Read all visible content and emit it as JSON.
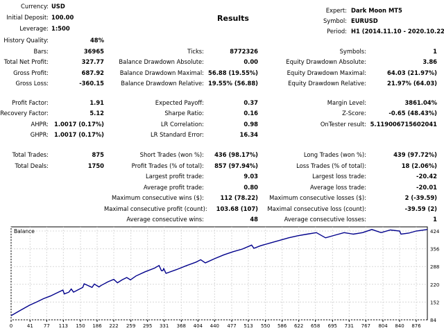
{
  "header": {
    "title": "Results",
    "currency": {
      "label": "Currency:",
      "value": "USD"
    },
    "initial_deposit": {
      "label": "Initial Deposit:",
      "value": "100.00"
    },
    "leverage": {
      "label": "Leverage:",
      "value": "1:500"
    },
    "expert": {
      "label": "Expert:",
      "value": "Dark Moon MT5"
    },
    "symbol": {
      "label": "Symbol:",
      "value": "EURUSD"
    },
    "period": {
      "label": "Period:",
      "value": "H1 (2014.11.10 - 2020.10.22)"
    }
  },
  "stats": {
    "history_quality": {
      "label": "History Quality:",
      "value": "48%"
    },
    "bars": {
      "label": "Bars:",
      "value": "36965"
    },
    "ticks": {
      "label": "Ticks:",
      "value": "8772326"
    },
    "symbols": {
      "label": "Symbols:",
      "value": "1"
    },
    "total_net_profit": {
      "label": "Total Net Profit:",
      "value": "327.77"
    },
    "balance_dd_abs": {
      "label": "Balance Drawdown Absolute:",
      "value": "0.00"
    },
    "equity_dd_abs": {
      "label": "Equity Drawdown Absolute:",
      "value": "3.86"
    },
    "gross_profit": {
      "label": "Gross Profit:",
      "value": "687.92"
    },
    "balance_dd_max": {
      "label": "Balance Drawdown Maximal:",
      "value": "56.88 (19.55%)"
    },
    "equity_dd_max": {
      "label": "Equity Drawdown Maximal:",
      "value": "64.03 (21.97%)"
    },
    "gross_loss": {
      "label": "Gross Loss:",
      "value": "-360.15"
    },
    "balance_dd_rel": {
      "label": "Balance Drawdown Relative:",
      "value": "19.55% (56.88)"
    },
    "equity_dd_rel": {
      "label": "Equity Drawdown Relative:",
      "value": "21.97% (64.03)"
    },
    "profit_factor": {
      "label": "Profit Factor:",
      "value": "1.91"
    },
    "expected_payoff": {
      "label": "Expected Payoff:",
      "value": "0.37"
    },
    "margin_level": {
      "label": "Margin Level:",
      "value": "3861.04%"
    },
    "recovery_factor": {
      "label": "Recovery Factor:",
      "value": "5.12"
    },
    "sharpe_ratio": {
      "label": "Sharpe Ratio:",
      "value": "0.16"
    },
    "z_score": {
      "label": "Z-Score:",
      "value": "-0.65 (48.43%)"
    },
    "ahpr": {
      "label": "AHPR:",
      "value": "1.0017 (0.17%)"
    },
    "lr_correlation": {
      "label": "LR Correlation:",
      "value": "0.98"
    },
    "ontester_result": {
      "label": "OnTester result:",
      "value": "5.119006715602041"
    },
    "ghpr": {
      "label": "GHPR:",
      "value": "1.0017 (0.17%)"
    },
    "lr_std_error": {
      "label": "LR Standard Error:",
      "value": "16.34"
    },
    "total_trades": {
      "label": "Total Trades:",
      "value": "875"
    },
    "short_trades": {
      "label": "Short Trades (won %):",
      "value": "436 (98.17%)"
    },
    "long_trades": {
      "label": "Long Trades (won %):",
      "value": "439 (97.72%)"
    },
    "total_deals": {
      "label": "Total Deals:",
      "value": "1750"
    },
    "profit_trades": {
      "label": "Profit Trades (% of total):",
      "value": "857 (97.94%)"
    },
    "loss_trades": {
      "label": "Loss Trades (% of total):",
      "value": "18 (2.06%)"
    },
    "largest_profit": {
      "label": "Largest profit trade:",
      "value": "9.03"
    },
    "largest_loss": {
      "label": "Largest loss trade:",
      "value": "-20.42"
    },
    "avg_profit": {
      "label": "Average profit trade:",
      "value": "0.80"
    },
    "avg_loss": {
      "label": "Average loss trade:",
      "value": "-20.01"
    },
    "max_consec_wins": {
      "label": "Maximum consecutive wins ($):",
      "value": "112 (78.22)"
    },
    "max_consec_losses": {
      "label": "Maximum consecutive losses ($):",
      "value": "2 (-39.59)"
    },
    "maximal_consec_profit": {
      "label": "Maximal consecutive profit (count):",
      "value": "103.68 (107)"
    },
    "maximal_consec_loss": {
      "label": "Maximal consecutive loss (count):",
      "value": "-39.59 (2)"
    },
    "avg_consec_wins": {
      "label": "Average consecutive wins:",
      "value": "48"
    },
    "avg_consec_losses": {
      "label": "Average consecutive losses:",
      "value": "1"
    }
  },
  "chart_data": {
    "type": "line",
    "title": "Balance",
    "xlabel": "",
    "ylabel": "",
    "x_ticks": [
      0,
      41,
      77,
      113,
      150,
      186,
      222,
      259,
      295,
      331,
      368,
      404,
      440,
      477,
      513,
      550,
      586,
      622,
      658,
      695,
      731,
      767,
      804,
      840,
      876
    ],
    "y_ticks": [
      84,
      152,
      220,
      288,
      356,
      424
    ],
    "xlim": [
      0,
      900
    ],
    "ylim": [
      84,
      440
    ],
    "line_color": "#00008b",
    "series": [
      {
        "x": [
          0,
          20,
          40,
          55,
          70,
          85,
          100,
          112,
          115,
          125,
          130,
          135,
          155,
          158,
          175,
          180,
          190,
          195,
          210,
          222,
          230,
          240,
          250,
          258,
          270,
          290,
          310,
          320,
          325,
          328,
          330,
          335,
          360,
          380,
          400,
          410,
          420,
          440,
          460,
          480,
          500,
          520,
          525,
          540,
          560,
          580,
          600,
          620,
          640,
          660,
          680,
          700,
          720,
          740,
          760,
          780,
          800,
          820,
          840,
          843,
          860,
          876,
          900
        ],
        "y": [
          100,
          120,
          140,
          152,
          165,
          175,
          188,
          198,
          183,
          190,
          202,
          190,
          208,
          222,
          208,
          221,
          210,
          216,
          230,
          239,
          226,
          237,
          246,
          237,
          252,
          268,
          282,
          292,
          272,
          272,
          280,
          262,
          278,
          292,
          305,
          314,
          302,
          318,
          333,
          345,
          355,
          370,
          358,
          368,
          378,
          388,
          398,
          406,
          412,
          418,
          398,
          408,
          418,
          412,
          418,
          430,
          418,
          428,
          424,
          412,
          416,
          424,
          430
        ]
      }
    ],
    "grid": true
  }
}
